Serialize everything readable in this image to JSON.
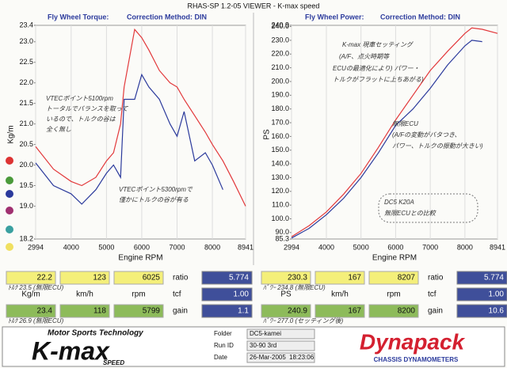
{
  "header": {
    "title": "RHAS-SP 1.2-05 VIEWER - K-max speed"
  },
  "chart_data": [
    {
      "type": "line",
      "title": "Fly Wheel Torque:",
      "subtitle": "Correction Method: DIN",
      "x_label": "Engine RPM",
      "y_label": "Kg/m",
      "x": [
        2994,
        3500,
        4000,
        4300,
        4700,
        5000,
        5200,
        5400,
        5500,
        5800,
        6000,
        6200,
        6500,
        6800,
        7000,
        7200,
        7500,
        7800,
        8000,
        8300,
        8600,
        8941
      ],
      "xlim": [
        2994,
        8941
      ],
      "xticks": [
        2994,
        4000,
        5000,
        6000,
        7000,
        8000,
        8941
      ],
      "ylim": [
        18.2,
        23.4
      ],
      "yticks": [
        18.2,
        {
          "value": 19,
          "label": "19.0"
        },
        19.5,
        {
          "value": 20,
          "label": "20.0"
        },
        20.5,
        {
          "value": 21,
          "label": "21.0"
        },
        21.5,
        {
          "value": 22,
          "label": "22.0"
        },
        22.5,
        {
          "value": 23,
          "label": "23.0"
        },
        23.4
      ],
      "grid": true,
      "series": [
        {
          "color": "#e2383a",
          "values": [
            20.45,
            19.9,
            19.6,
            19.5,
            19.7,
            20.1,
            20.3,
            21.0,
            21.9,
            23.3,
            23.1,
            22.8,
            22.3,
            22.0,
            21.9,
            21.6,
            21.2,
            20.8,
            20.5,
            20.1,
            19.6,
            19.0
          ]
        },
        {
          "color": "#2b3a9c",
          "values": [
            20.05,
            19.5,
            19.3,
            19.05,
            19.4,
            19.8,
            20.0,
            19.7,
            21.6,
            21.6,
            22.2,
            21.9,
            21.6,
            21.0,
            20.7,
            21.3,
            20.1,
            20.3,
            20.0,
            19.4,
            null,
            null
          ]
        }
      ],
      "annotations": [
        "VTECポイント5100rpm",
        "トータルでバランスを取って",
        "いるので、トルクの谷は",
        "全く無し",
        "VTECポイント5300rpmで",
        "僅かにトルクの谷が有る"
      ]
    },
    {
      "type": "line",
      "title": "Fly Wheel Power:",
      "subtitle": "Correction Method: DIN",
      "x_label": "Engine RPM",
      "y_label": "PS",
      "x": [
        2994,
        3500,
        4000,
        4500,
        5000,
        5500,
        6000,
        6500,
        7000,
        7500,
        8000,
        8200,
        8500,
        8941
      ],
      "xlim": [
        2994,
        8941
      ],
      "xticks": [
        2994,
        4000,
        5000,
        6000,
        7000,
        8000,
        8941
      ],
      "ylim": [
        85.3,
        240.9
      ],
      "yticks": [
        85.3,
        {
          "value": 90,
          "label": "90.0"
        },
        {
          "value": 100,
          "label": "100.0"
        },
        {
          "value": 110,
          "label": "110.0"
        },
        {
          "value": 120,
          "label": "120.0"
        },
        {
          "value": 130,
          "label": "130.0"
        },
        {
          "value": 140,
          "label": "140.0"
        },
        {
          "value": 150,
          "label": "150.0"
        },
        {
          "value": 160,
          "label": "160.0"
        },
        {
          "value": 170,
          "label": "170.0"
        },
        {
          "value": 180,
          "label": "180.0"
        },
        {
          "value": 190,
          "label": "190.0"
        },
        {
          "value": 200,
          "label": "200.0"
        },
        {
          "value": 210,
          "label": "210.0"
        },
        {
          "value": 220,
          "label": "220.0"
        },
        {
          "value": 230,
          "label": "230.0"
        },
        {
          "value": 240,
          "label": "240.0"
        },
        240.9
      ],
      "grid": true,
      "series": [
        {
          "color": "#e2383a",
          "values": [
            87,
            95,
            105,
            118,
            133,
            152,
            172,
            190,
            208,
            222,
            235,
            239,
            238,
            235
          ]
        },
        {
          "color": "#2b3a9c",
          "values": [
            86,
            93,
            103,
            115,
            130,
            148,
            168,
            180,
            195,
            212,
            226,
            230,
            229,
            null
          ]
        }
      ],
      "annotations": [
        "K-max 現車セッティング",
        "(A/F、点火時期等",
        "ECUの最適化により) パワー・",
        "トルクがフラットに上ちあがる)",
        "無限ECU",
        "(A/Fの変動がバタつき、",
        "パワー、トルクの振動が大きい)",
        "DC5 K20A",
        "無限ECUとの比較"
      ]
    }
  ],
  "readouts": [
    {
      "top": [
        "22.2",
        "123",
        "6025"
      ],
      "ratio_label": "ratio",
      "ratio": "5.774",
      "units": [
        "Kg/m",
        "km/h",
        "rpm"
      ],
      "tcf_label": "tcf",
      "tcf": "1.00",
      "bottom": [
        "23.4",
        "118",
        "5799"
      ],
      "gain_label": "gain",
      "gain": "1.1",
      "notes": [
        "ﾄﾙｸ 23.5 (無限ECU)",
        "ﾄﾙｸ 26.9 (無限ECU)"
      ]
    },
    {
      "top": [
        "230.3",
        "167",
        "8207"
      ],
      "ratio_label": "ratio",
      "ratio": "5.774",
      "units": [
        "PS",
        "km/h",
        "rpm"
      ],
      "tcf_label": "tcf",
      "tcf": "1.00",
      "bottom": [
        "240.9",
        "167",
        "8200"
      ],
      "gain_label": "gain",
      "gain": "10.6",
      "notes": [
        "ﾊﾟﾜｰ 234.8 (無限ECU)",
        "ﾊﾟﾜｰ 277.0 (セッティング後)"
      ]
    }
  ],
  "footer": {
    "tagline": "Motor Sports Technology",
    "logo": "K-max",
    "logo_sub": "SPEED",
    "folder_label": "Folder",
    "folder": "DC5-kamei",
    "run_label": "Run ID",
    "run": "30-90 3rd",
    "date_label": "Date",
    "date": "26-Mar-2005",
    "time": "18:23:06",
    "brand": "Dynapack",
    "brand_sub": "CHASSIS DYNAMOMETERS"
  }
}
